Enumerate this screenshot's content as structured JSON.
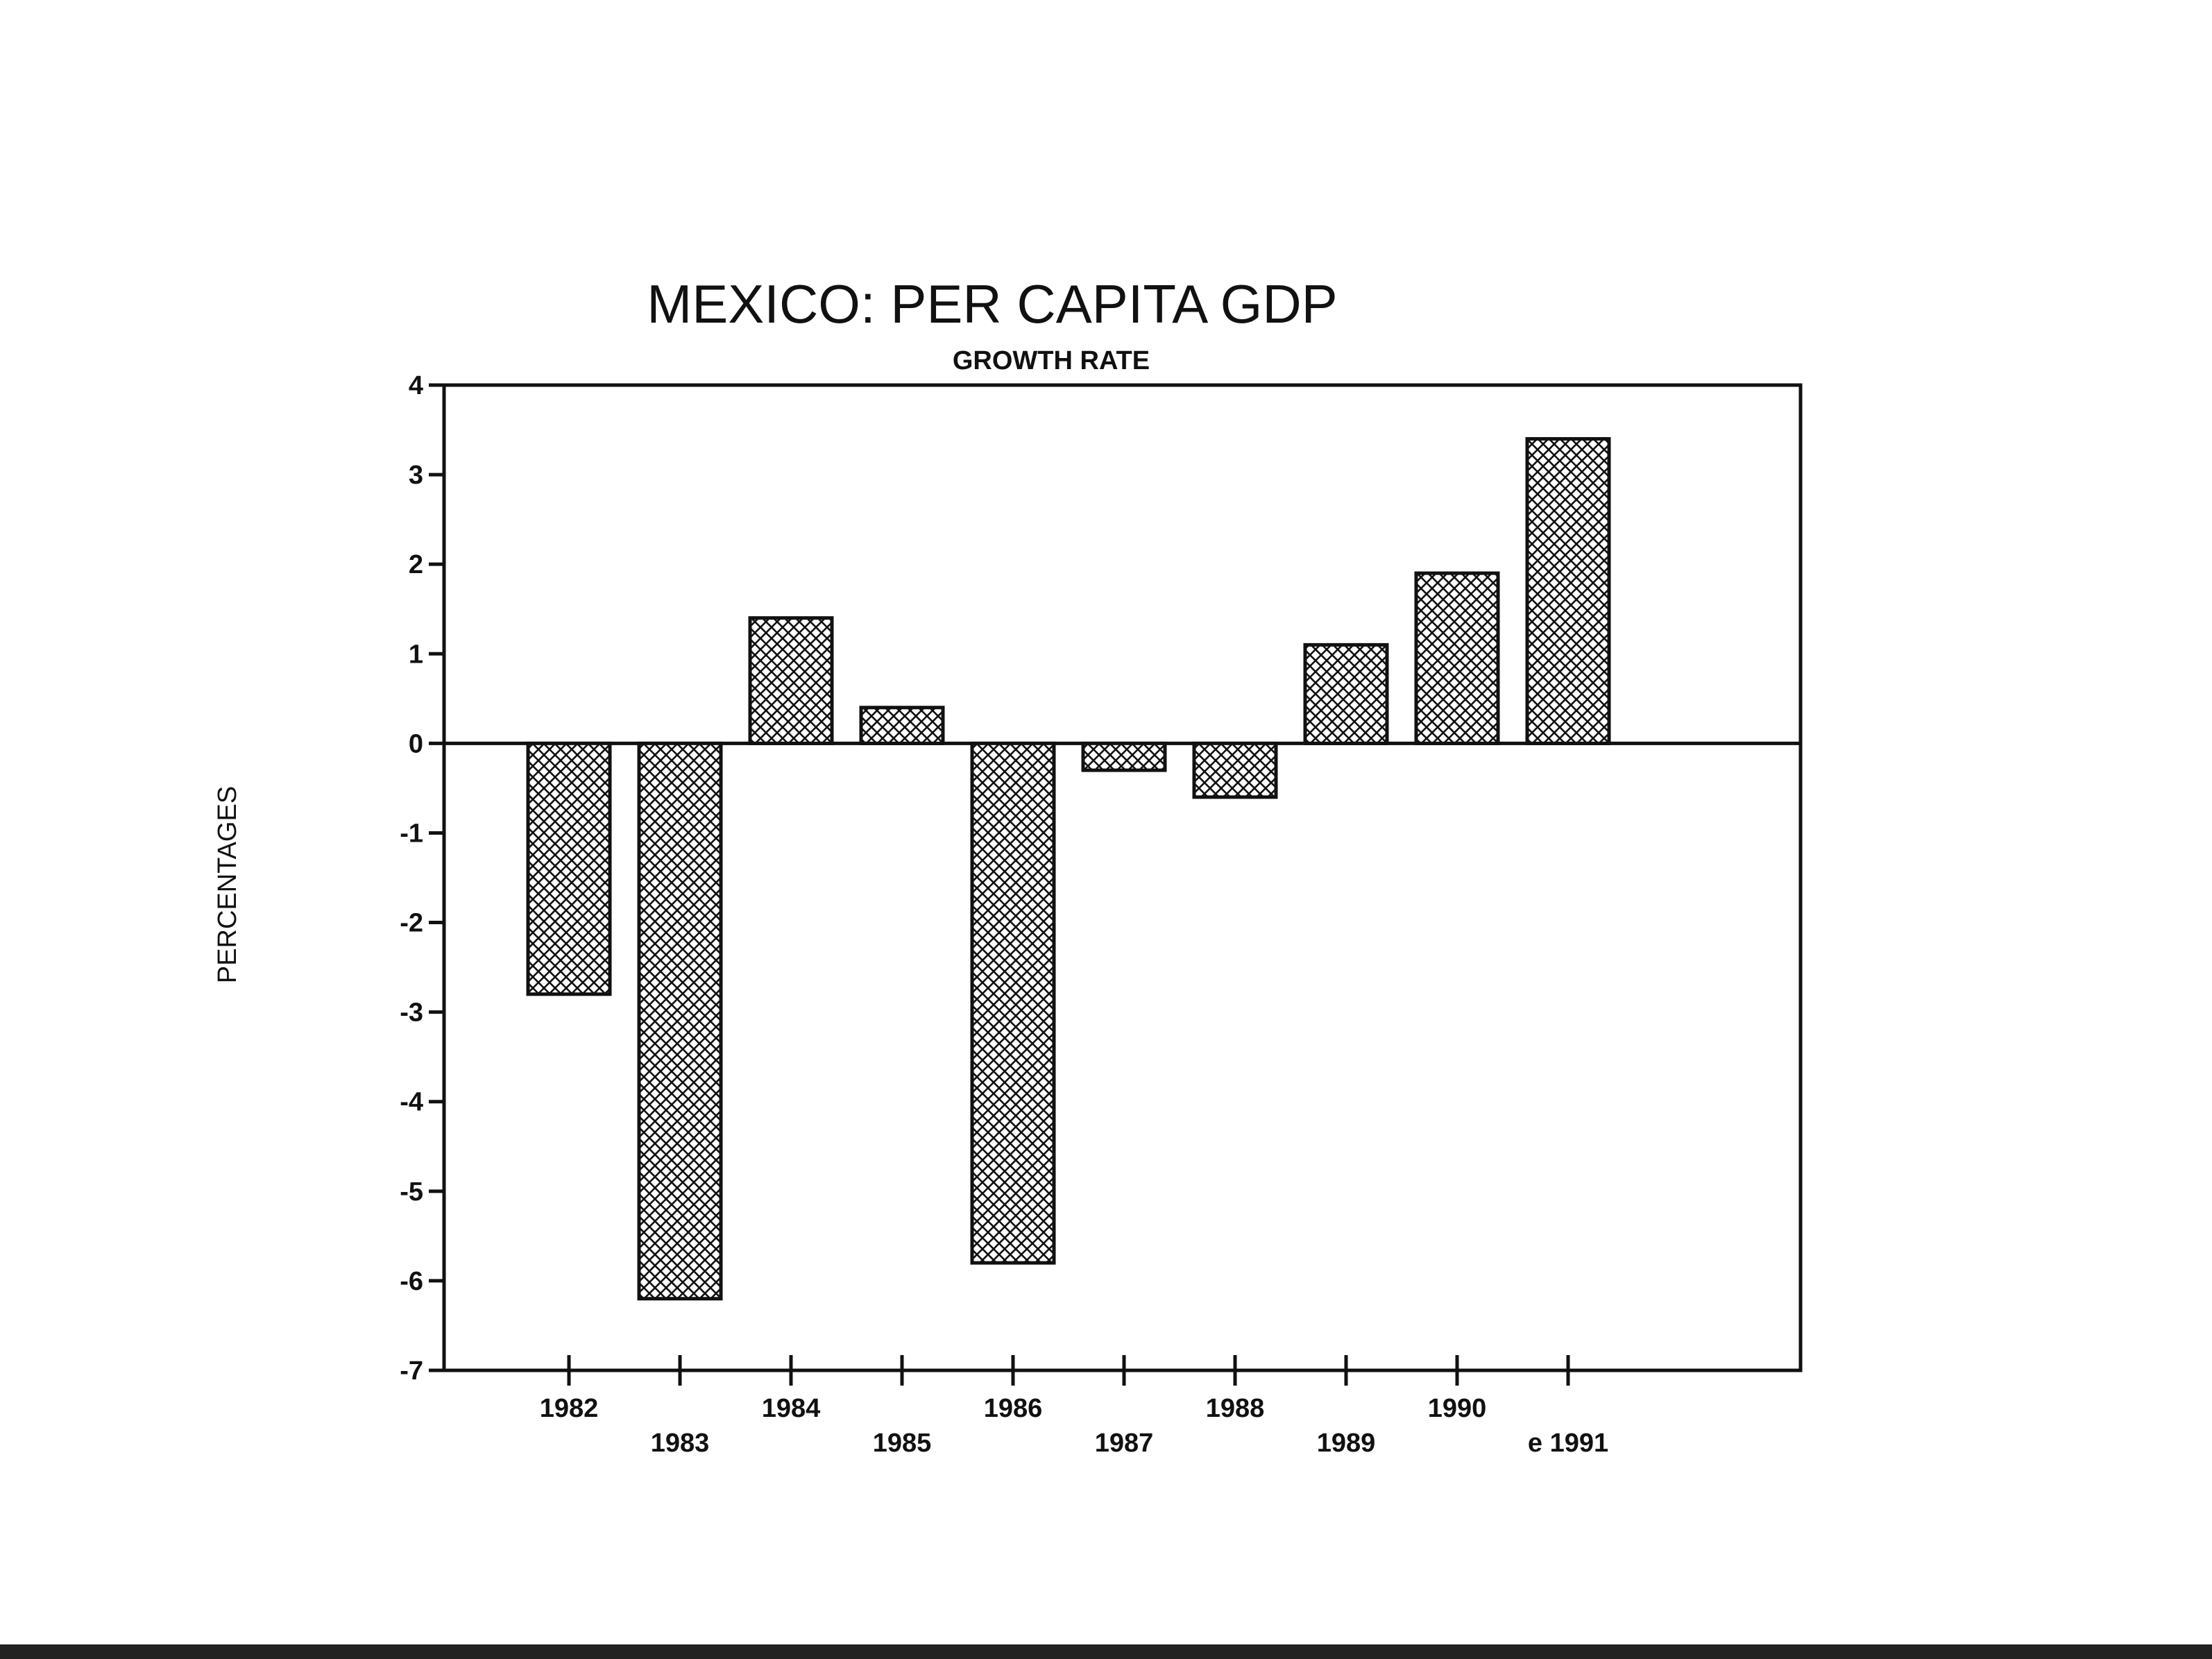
{
  "chart_data": {
    "type": "bar",
    "title": "MEXICO: PER CAPITA GDP",
    "subtitle": "GROWTH RATE",
    "ylabel": "PERCENTAGES",
    "xlabel": "",
    "categories": [
      "1982",
      "1983",
      "1984",
      "1985",
      "1986",
      "1987",
      "1988",
      "1989",
      "1990",
      "e 1991"
    ],
    "values": [
      -2.8,
      -6.2,
      1.4,
      0.4,
      -5.8,
      -0.3,
      -0.6,
      1.1,
      1.9,
      3.4
    ],
    "ylim": [
      -7,
      4
    ],
    "yticks": [
      "4",
      "3",
      "2",
      "1",
      "0",
      "-1",
      "-2",
      "-3",
      "-4",
      "-5",
      "-6",
      "-7"
    ],
    "grid": false,
    "legend": "none"
  }
}
